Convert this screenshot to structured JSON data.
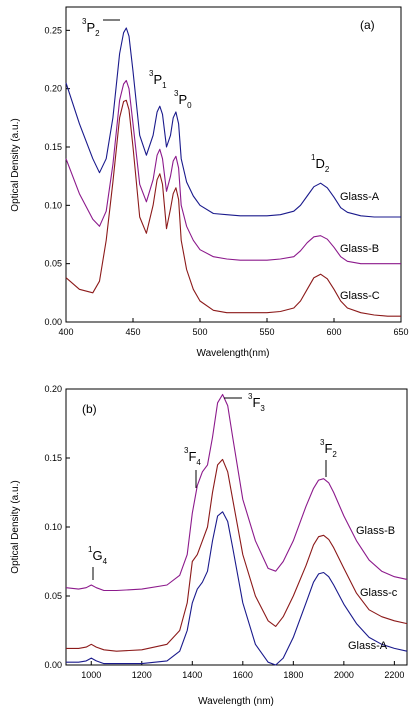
{
  "chart_data": [
    {
      "type": "line",
      "panel_label": "(a)",
      "xlabel": "Wavelength(nm)",
      "ylabel": "Optical Density (a.u.)",
      "xlim": [
        400,
        650
      ],
      "ylim": [
        0,
        0.27
      ],
      "xticks": [
        400,
        450,
        500,
        550,
        600,
        650
      ],
      "yticks": [
        0.0,
        0.05,
        0.1,
        0.15,
        0.2,
        0.25
      ],
      "ytick_labels": [
        "0.00",
        "0.05",
        "0.10",
        "0.15",
        "0.20",
        "0.25"
      ],
      "grid": false,
      "series": [
        {
          "name": "Glass-A",
          "color": "#1a1a8c",
          "x": [
            400,
            410,
            420,
            425,
            430,
            435,
            440,
            443,
            445,
            447,
            450,
            455,
            460,
            465,
            468,
            470,
            472,
            475,
            478,
            480,
            482,
            484,
            486,
            490,
            495,
            500,
            510,
            520,
            530,
            540,
            550,
            560,
            570,
            575,
            580,
            585,
            590,
            595,
            600,
            605,
            610,
            620,
            630,
            640,
            650
          ],
          "y": [
            0.205,
            0.17,
            0.14,
            0.128,
            0.14,
            0.175,
            0.23,
            0.248,
            0.252,
            0.245,
            0.215,
            0.16,
            0.143,
            0.16,
            0.18,
            0.185,
            0.178,
            0.15,
            0.16,
            0.175,
            0.18,
            0.17,
            0.14,
            0.12,
            0.108,
            0.1,
            0.093,
            0.092,
            0.091,
            0.091,
            0.091,
            0.092,
            0.095,
            0.1,
            0.108,
            0.116,
            0.119,
            0.115,
            0.107,
            0.098,
            0.094,
            0.091,
            0.09,
            0.09,
            0.09
          ]
        },
        {
          "name": "Glass-B",
          "color": "#8c1a8c",
          "x": [
            400,
            410,
            420,
            425,
            430,
            435,
            440,
            443,
            445,
            447,
            450,
            455,
            460,
            465,
            468,
            470,
            472,
            475,
            478,
            480,
            482,
            484,
            486,
            490,
            495,
            500,
            510,
            520,
            530,
            540,
            550,
            560,
            570,
            575,
            580,
            585,
            590,
            595,
            600,
            605,
            610,
            620,
            630,
            640,
            650
          ],
          "y": [
            0.14,
            0.11,
            0.088,
            0.082,
            0.095,
            0.135,
            0.19,
            0.204,
            0.207,
            0.2,
            0.17,
            0.118,
            0.103,
            0.122,
            0.143,
            0.148,
            0.14,
            0.112,
            0.125,
            0.138,
            0.142,
            0.132,
            0.1,
            0.082,
            0.07,
            0.062,
            0.056,
            0.054,
            0.053,
            0.053,
            0.053,
            0.054,
            0.056,
            0.061,
            0.068,
            0.073,
            0.074,
            0.071,
            0.064,
            0.056,
            0.052,
            0.05,
            0.05,
            0.05,
            0.05
          ]
        },
        {
          "name": "Glass-C",
          "color": "#8c1a1a",
          "x": [
            400,
            410,
            420,
            425,
            430,
            435,
            440,
            443,
            445,
            447,
            450,
            455,
            460,
            465,
            468,
            470,
            472,
            475,
            478,
            480,
            482,
            484,
            486,
            490,
            495,
            500,
            510,
            520,
            530,
            540,
            550,
            560,
            570,
            575,
            580,
            585,
            590,
            595,
            600,
            605,
            610,
            620,
            630,
            640,
            650
          ],
          "y": [
            0.038,
            0.028,
            0.025,
            0.035,
            0.07,
            0.12,
            0.175,
            0.189,
            0.19,
            0.182,
            0.15,
            0.09,
            0.076,
            0.1,
            0.122,
            0.127,
            0.118,
            0.08,
            0.097,
            0.11,
            0.115,
            0.105,
            0.07,
            0.045,
            0.028,
            0.018,
            0.01,
            0.008,
            0.008,
            0.008,
            0.008,
            0.009,
            0.012,
            0.018,
            0.028,
            0.038,
            0.041,
            0.037,
            0.028,
            0.018,
            0.012,
            0.008,
            0.006,
            0.005,
            0.005
          ]
        }
      ],
      "annotations": [
        {
          "sup": "3",
          "main": "P",
          "sub": "2"
        },
        {
          "sup": "3",
          "main": "P",
          "sub": "1"
        },
        {
          "sup": "3",
          "main": "P",
          "sub": "0"
        },
        {
          "sup": "1",
          "main": "D",
          "sub": "2"
        }
      ],
      "series_labels": [
        "Glass-A",
        "Glass-B",
        "Glass-C"
      ]
    },
    {
      "type": "line",
      "panel_label": "(b)",
      "xlabel": "Wavelength (nm)",
      "ylabel": "Optical Density (a.u.)",
      "xlim": [
        900,
        2250
      ],
      "ylim": [
        0,
        0.2
      ],
      "xticks": [
        1000,
        1200,
        1400,
        1600,
        1800,
        2000,
        2200
      ],
      "yticks": [
        0.0,
        0.05,
        0.1,
        0.15,
        0.2
      ],
      "ytick_labels": [
        "0.00",
        "0.05",
        "0.10",
        "0.15",
        "0.20"
      ],
      "grid": false,
      "series": [
        {
          "name": "Glass-B",
          "color": "#8c1a8c",
          "x": [
            900,
            950,
            980,
            1000,
            1020,
            1050,
            1100,
            1200,
            1300,
            1350,
            1380,
            1400,
            1420,
            1440,
            1460,
            1480,
            1500,
            1520,
            1540,
            1560,
            1600,
            1650,
            1700,
            1730,
            1760,
            1800,
            1850,
            1880,
            1900,
            1920,
            1940,
            1960,
            2000,
            2050,
            2100,
            2150,
            2200,
            2250
          ],
          "y": [
            0.056,
            0.055,
            0.056,
            0.058,
            0.056,
            0.054,
            0.054,
            0.055,
            0.058,
            0.065,
            0.08,
            0.11,
            0.13,
            0.14,
            0.145,
            0.165,
            0.19,
            0.196,
            0.188,
            0.165,
            0.12,
            0.09,
            0.07,
            0.068,
            0.075,
            0.09,
            0.115,
            0.128,
            0.134,
            0.135,
            0.132,
            0.125,
            0.108,
            0.09,
            0.076,
            0.068,
            0.064,
            0.062
          ]
        },
        {
          "name": "Glass-c",
          "color": "#8c1a1a",
          "x": [
            900,
            950,
            980,
            1000,
            1020,
            1050,
            1100,
            1200,
            1300,
            1350,
            1380,
            1400,
            1420,
            1440,
            1460,
            1480,
            1500,
            1520,
            1540,
            1560,
            1600,
            1650,
            1700,
            1730,
            1760,
            1800,
            1850,
            1880,
            1900,
            1920,
            1940,
            1960,
            2000,
            2050,
            2100,
            2150,
            2200,
            2250
          ],
          "y": [
            0.012,
            0.012,
            0.013,
            0.015,
            0.013,
            0.011,
            0.01,
            0.011,
            0.015,
            0.025,
            0.045,
            0.075,
            0.08,
            0.09,
            0.1,
            0.125,
            0.145,
            0.149,
            0.14,
            0.12,
            0.08,
            0.05,
            0.032,
            0.028,
            0.035,
            0.05,
            0.072,
            0.087,
            0.093,
            0.094,
            0.091,
            0.085,
            0.07,
            0.052,
            0.04,
            0.035,
            0.032,
            0.03
          ]
        },
        {
          "name": "Glass-A",
          "color": "#1a1a8c",
          "x": [
            900,
            950,
            980,
            1000,
            1020,
            1050,
            1100,
            1200,
            1300,
            1350,
            1380,
            1400,
            1420,
            1440,
            1460,
            1480,
            1500,
            1520,
            1540,
            1560,
            1600,
            1650,
            1700,
            1730,
            1760,
            1800,
            1850,
            1880,
            1900,
            1920,
            1940,
            1960,
            2000,
            2050,
            2100,
            2150,
            2200,
            2250
          ],
          "y": [
            0.002,
            0.002,
            0.003,
            0.005,
            0.003,
            0.001,
            0.001,
            0.001,
            0.003,
            0.01,
            0.025,
            0.045,
            0.055,
            0.06,
            0.068,
            0.09,
            0.108,
            0.111,
            0.104,
            0.085,
            0.045,
            0.015,
            0.002,
            0.0,
            0.005,
            0.02,
            0.045,
            0.06,
            0.066,
            0.067,
            0.064,
            0.058,
            0.044,
            0.03,
            0.02,
            0.015,
            0.012,
            0.01
          ]
        }
      ],
      "annotations": [
        {
          "sup": "1",
          "main": "G",
          "sub": "4"
        },
        {
          "sup": "3",
          "main": "F",
          "sub": "4"
        },
        {
          "sup": "3",
          "main": "F",
          "sub": "3"
        },
        {
          "sup": "3",
          "main": "F",
          "sub": "2"
        }
      ],
      "series_labels": [
        "Glass-B",
        "Glass-c",
        "Glass-A"
      ]
    }
  ]
}
